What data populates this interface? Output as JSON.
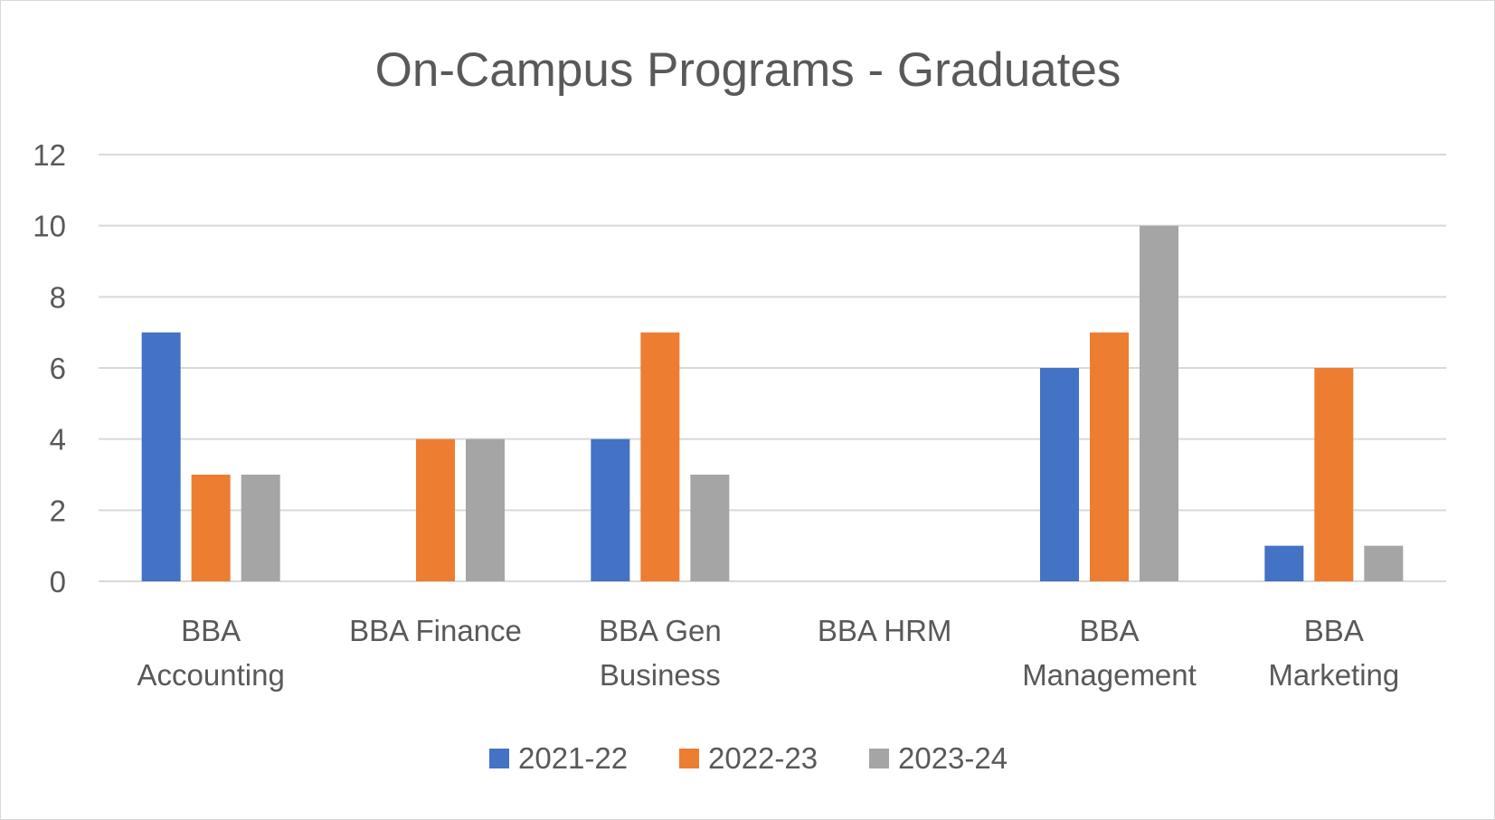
{
  "chart_data": {
    "type": "bar",
    "title": "On-Campus Programs - Graduates",
    "xlabel": "",
    "ylabel": "",
    "categories": [
      "BBA Accounting",
      "BBA Finance",
      "BBA Gen Business",
      "BBA HRM",
      "BBA Management",
      "BBA Marketing"
    ],
    "category_label_lines": [
      [
        "BBA",
        "Accounting"
      ],
      [
        "BBA Finance"
      ],
      [
        "BBA Gen",
        "Business"
      ],
      [
        "BBA HRM"
      ],
      [
        "BBA",
        "Management"
      ],
      [
        "BBA",
        "Marketing"
      ]
    ],
    "series": [
      {
        "name": "2021-22",
        "color": "#4472C4",
        "values": [
          7,
          0,
          4,
          0,
          6,
          1
        ]
      },
      {
        "name": "2022-23",
        "color": "#ED7D31",
        "values": [
          3,
          4,
          7,
          0,
          7,
          6
        ]
      },
      {
        "name": "2023-24",
        "color": "#A5A5A5",
        "values": [
          3,
          4,
          3,
          0,
          10,
          1
        ]
      }
    ],
    "ylim": [
      0,
      12
    ],
    "y_ticks": [
      "0",
      "2",
      "4",
      "6",
      "8",
      "10",
      "12"
    ],
    "y_tick_values": [
      0,
      2,
      4,
      6,
      8,
      10,
      12
    ],
    "grid": true,
    "gridline_color": "#d9d9d9",
    "legend_position": "bottom"
  }
}
